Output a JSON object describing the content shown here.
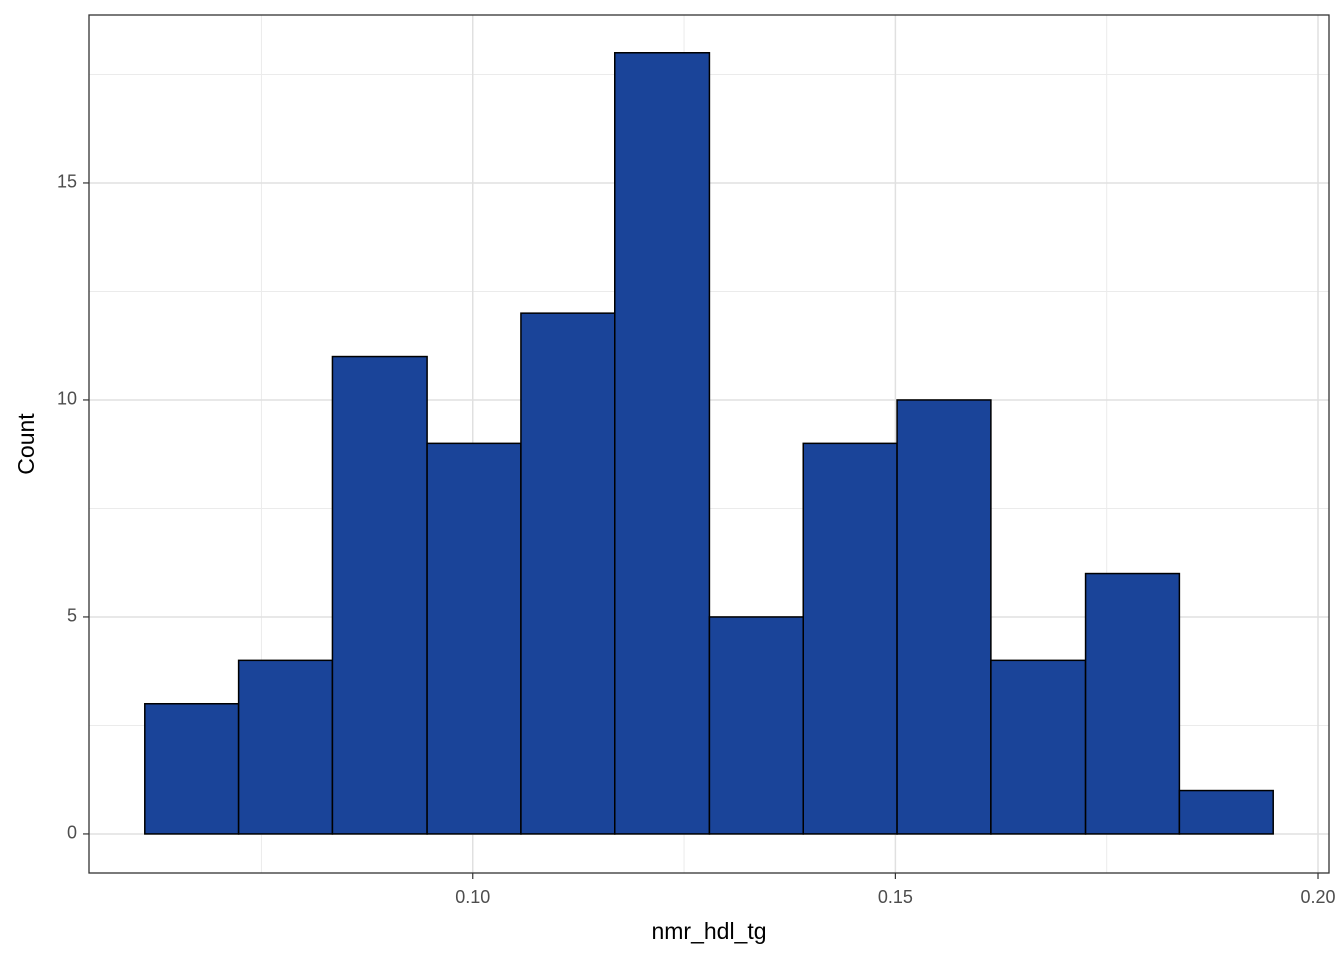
{
  "chart_data": {
    "type": "histogram",
    "x_label": "nmr_hdl_tg",
    "y_label": "Count",
    "bins": [
      0.0612,
      0.0723,
      0.0834,
      0.0946,
      0.1057,
      0.1168,
      0.128,
      0.1391,
      0.1502,
      0.1613,
      0.1725,
      0.1836,
      0.1947
    ],
    "values": [
      3,
      4,
      11,
      9,
      12,
      18,
      5,
      9,
      10,
      4,
      6,
      1
    ],
    "color": "#1a4499",
    "xlim": [
      0.0546,
      0.2013
    ],
    "ylim": [
      -0.9,
      18.87
    ],
    "xticks": [
      {
        "value": 0.1,
        "label": "0.10"
      },
      {
        "value": 0.15,
        "label": "0.15"
      },
      {
        "value": 0.2,
        "label": "0.20"
      }
    ],
    "yticks": [
      0,
      5,
      10,
      15
    ],
    "grid": true
  }
}
